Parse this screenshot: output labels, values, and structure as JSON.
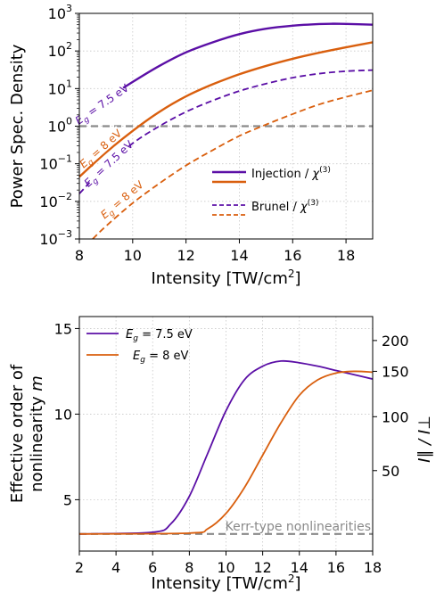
{
  "chart_data": [
    {
      "type": "line",
      "ylabel": "Power Spec. Density",
      "xlabel_base": "Intensity [TW/cm",
      "xlabel_sup": "2",
      "xlabel_tail": "]",
      "xlim": [
        8,
        19
      ],
      "ylim_log10": [
        -3,
        3
      ],
      "log_y": true,
      "grid": true,
      "xticks": [
        "8",
        "10",
        "12",
        "14",
        "16",
        "18"
      ],
      "yticks": [
        {
          "base": "10",
          "exp": "-3"
        },
        {
          "base": "10",
          "exp": "-2"
        },
        {
          "base": "10",
          "exp": "-1"
        },
        {
          "base": "10",
          "exp": "0"
        },
        {
          "base": "10",
          "exp": "1"
        },
        {
          "base": "10",
          "exp": "2"
        },
        {
          "base": "10",
          "exp": "3"
        }
      ],
      "hline": {
        "y": 1.0,
        "color": "#8a8a8a"
      },
      "series": [
        {
          "color": "#5b0fa6",
          "dash": "solid",
          "label_base": "E",
          "label_sub": "g",
          "label_tail": " = 7.5 eV",
          "x": [
            8,
            9,
            10,
            11,
            12,
            13,
            14,
            15,
            16,
            17,
            17.5,
            18,
            19
          ],
          "y": [
            1.6,
            5.2,
            15,
            40,
            92,
            170,
            280,
            390,
            470,
            520,
            530,
            525,
            500
          ]
        },
        {
          "color": "#d95f0e",
          "dash": "solid",
          "label_base": "E",
          "label_sub": "g",
          "label_tail": " = 8 eV",
          "x": [
            8,
            9,
            10,
            11,
            12,
            13,
            14,
            15,
            16,
            17,
            18,
            19
          ],
          "y": [
            0.045,
            0.2,
            0.75,
            2.4,
            6.2,
            13,
            24,
            40,
            62,
            90,
            125,
            170
          ]
        },
        {
          "color": "#5b0fa6",
          "dash": "dashed",
          "label_base": "E",
          "label_sub": "g",
          "label_tail": " = 7.5 eV",
          "x": [
            8,
            9,
            10,
            11,
            12,
            13,
            14,
            15,
            16,
            17,
            18,
            19
          ],
          "y": [
            0.016,
            0.09,
            0.35,
            1.0,
            2.4,
            4.8,
            8.6,
            13.5,
            19.5,
            25,
            29,
            31
          ]
        },
        {
          "color": "#d95f0e",
          "dash": "dashed",
          "label_base": "E",
          "label_sub": "g",
          "label_tail": " = 8 eV",
          "x": [
            8.5,
            9,
            10,
            11,
            12,
            13,
            14,
            15,
            16,
            17,
            18,
            19
          ],
          "y": [
            0.001,
            0.0022,
            0.009,
            0.03,
            0.09,
            0.23,
            0.55,
            1.1,
            2.1,
            3.8,
            6.0,
            9.0
          ]
        }
      ],
      "legend": {
        "position": "lower-right",
        "entries": [
          {
            "text": "Injection / ",
            "sym": "χ",
            "sup": "(3)",
            "color": "#5b0fa6",
            "dash": "solid"
          },
          {
            "text": "",
            "sym": "",
            "sup": "",
            "color": "#d95f0e",
            "dash": "solid"
          },
          {
            "text": "Brunel / ",
            "sym": "χ",
            "sup": "(3)",
            "color": "#5b0fa6",
            "dash": "dashed"
          },
          {
            "text": "",
            "sym": "",
            "sup": "",
            "color": "#d95f0e",
            "dash": "dashed"
          }
        ]
      }
    },
    {
      "type": "line",
      "ylabel_line1": "Effective order of",
      "ylabel_line2_base": "nonlinearity ",
      "ylabel_line2_var": "m",
      "xlabel_base": "Intensity [TW/cm",
      "xlabel_sup": "2",
      "xlabel_tail": "]",
      "xlim": [
        2,
        18
      ],
      "ylim": [
        2.0,
        15.7
      ],
      "grid": true,
      "xticks": [
        "2",
        "4",
        "6",
        "8",
        "10",
        "12",
        "14",
        "16",
        "18"
      ],
      "yticks": [
        "5",
        "10",
        "15"
      ],
      "right_axis": {
        "label": "I∥ / I⊥",
        "ticks": [
          "50",
          "100",
          "150",
          "200"
        ],
        "tick_positions_left_units": [
          6.7,
          9.85,
          12.5,
          14.3
        ]
      },
      "hline": {
        "y": 3.0,
        "color": "#8a8a8a",
        "label": "Kerr-type nonlinearities"
      },
      "series": [
        {
          "name_base": "E",
          "name_sub": "g",
          "name_tail": " = 7.5 eV",
          "color": "#5b0fa6",
          "x": [
            2,
            6,
            7,
            8,
            9,
            10,
            11,
            12,
            13,
            14,
            15,
            16,
            17,
            18
          ],
          "y": [
            3.0,
            3.1,
            3.6,
            5.2,
            7.7,
            10.2,
            12.0,
            12.8,
            13.1,
            13.0,
            12.8,
            12.55,
            12.3,
            12.05
          ]
        },
        {
          "name_base": "E",
          "name_sub": "g",
          "name_tail": " = 8 eV",
          "color": "#d95f0e",
          "x": [
            2,
            8,
            9,
            10,
            11,
            12,
            13,
            14,
            15,
            16,
            17,
            18
          ],
          "y": [
            3.0,
            3.05,
            3.3,
            4.2,
            5.7,
            7.6,
            9.5,
            11.1,
            12.0,
            12.4,
            12.5,
            12.45
          ]
        }
      ],
      "legend": {
        "position": "top-left"
      }
    }
  ]
}
